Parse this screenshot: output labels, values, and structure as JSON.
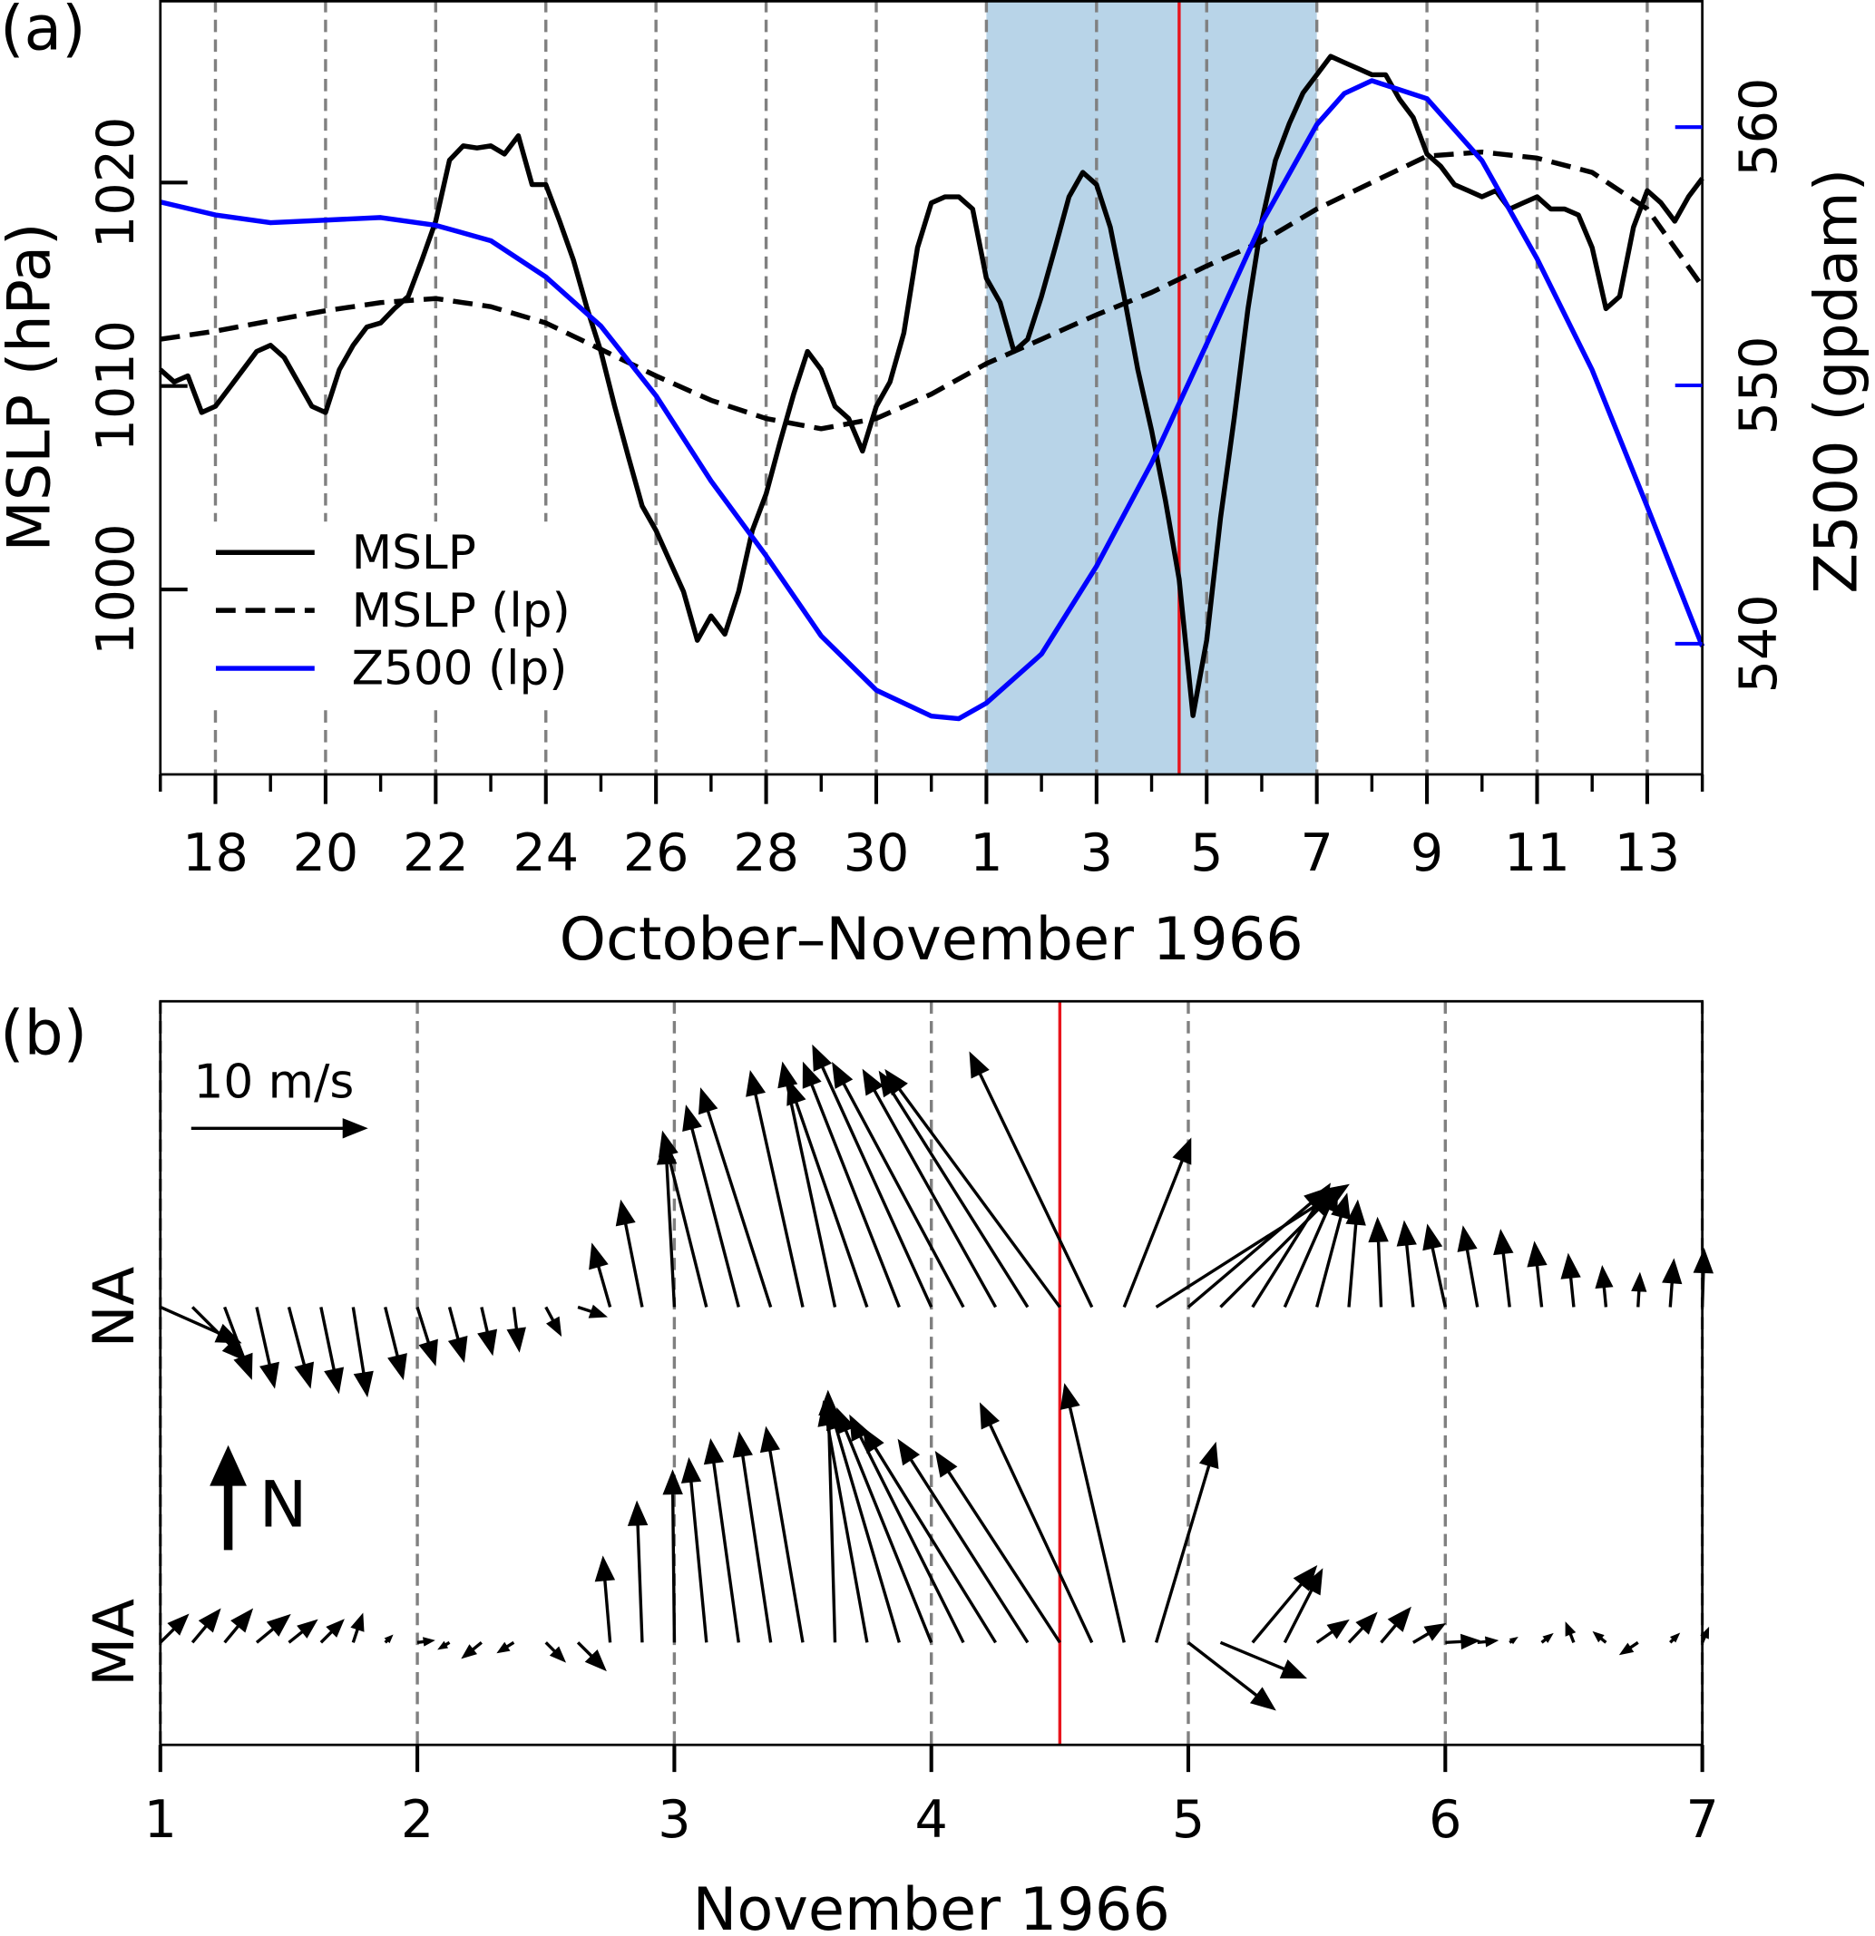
{
  "chart_data": [
    {
      "type": "line",
      "panel_label": "(a)",
      "xlabel": "October–November 1966",
      "ylabel": "MSLP (hPa)",
      "y2label": "Z500 (gpdam)",
      "xlim": [
        0,
        28
      ],
      "xticks": [
        {
          "value": 1,
          "label": "18"
        },
        {
          "value": 3,
          "label": "20"
        },
        {
          "value": 5,
          "label": "22"
        },
        {
          "value": 7,
          "label": "24"
        },
        {
          "value": 9,
          "label": "26"
        },
        {
          "value": 11,
          "label": "28"
        },
        {
          "value": 13,
          "label": "30"
        },
        {
          "value": 15,
          "label": "1"
        },
        {
          "value": 17,
          "label": "3"
        },
        {
          "value": 19,
          "label": "5"
        },
        {
          "value": 21,
          "label": "7"
        },
        {
          "value": 23,
          "label": "9"
        },
        {
          "value": 25,
          "label": "11"
        },
        {
          "value": 27,
          "label": "13"
        }
      ],
      "xminorticks": [
        0,
        1,
        2,
        3,
        4,
        5,
        6,
        7,
        8,
        9,
        10,
        11,
        12,
        13,
        14,
        15,
        16,
        17,
        18,
        19,
        20,
        21,
        22,
        23,
        24,
        25,
        26,
        27,
        28
      ],
      "ylim": [
        990.91,
        1028.97
      ],
      "yticks": [
        1000,
        1010,
        1020
      ],
      "y2lim": [
        534.94,
        564.92
      ],
      "y2ticks": [
        540,
        550,
        560
      ],
      "grid": true,
      "span": [
        15,
        21
      ],
      "span_color": "#b8d4e8",
      "vline": 18.5,
      "vline_color": "#e8141c",
      "legend": "lower left",
      "series": [
        {
          "name": "MSLP",
          "color": "#000000",
          "linestyle": "solid",
          "x": [
            0,
            0.25,
            0.5,
            0.75,
            1,
            1.25,
            1.5,
            1.75,
            2,
            2.25,
            2.5,
            2.75,
            3,
            3.25,
            3.5,
            3.75,
            4,
            4.25,
            4.5,
            4.75,
            5,
            5.25,
            5.5,
            5.75,
            6,
            6.25,
            6.5,
            6.75,
            7,
            7.25,
            7.5,
            7.75,
            8,
            8.25,
            8.5,
            8.75,
            9,
            9.25,
            9.5,
            9.75,
            10,
            10.25,
            10.5,
            10.75,
            11,
            11.25,
            11.5,
            11.75,
            12,
            12.25,
            12.5,
            12.75,
            13,
            13.25,
            13.5,
            13.75,
            14,
            14.25,
            14.5,
            14.75,
            15,
            15.25,
            15.5,
            15.75,
            16,
            16.25,
            16.5,
            16.75,
            17,
            17.25,
            17.5,
            17.75,
            18,
            18.25,
            18.5,
            18.75,
            19,
            19.25,
            19.5,
            19.75,
            20,
            20.25,
            20.5,
            20.75,
            21,
            21.25,
            21.5,
            21.75,
            22,
            22.25,
            22.5,
            22.75,
            23,
            23.25,
            23.5,
            23.75,
            24,
            24.25,
            24.5,
            24.75,
            25,
            25.25,
            25.5,
            25.75,
            26,
            26.25,
            26.5,
            26.75,
            27,
            27.25,
            27.5,
            27.75,
            28
          ],
          "values": [
            1010.8,
            1010.2,
            1010.5,
            1008.7,
            1009.0,
            1009.9,
            1010.8,
            1011.7,
            1012.0,
            1011.4,
            1010.2,
            1009.0,
            1008.7,
            1010.8,
            1012.0,
            1012.9,
            1013.1,
            1013.8,
            1014.4,
            1016.2,
            1018.1,
            1021.1,
            1021.8,
            1021.7,
            1021.8,
            1021.4,
            1022.3,
            1019.9,
            1019.9,
            1018.1,
            1016.2,
            1013.8,
            1011.7,
            1009.0,
            1006.5,
            1004.1,
            1002.9,
            1001.4,
            999.9,
            997.5,
            998.7,
            997.8,
            999.9,
            1002.9,
            1004.7,
            1007.2,
            1009.6,
            1011.7,
            1010.8,
            1009.0,
            1008.4,
            1006.8,
            1009.0,
            1010.2,
            1012.6,
            1016.8,
            1019.0,
            1019.3,
            1019.3,
            1018.7,
            1015.3,
            1014.1,
            1011.7,
            1012.3,
            1014.4,
            1016.8,
            1019.3,
            1020.5,
            1019.9,
            1017.8,
            1014.4,
            1010.8,
            1007.8,
            1004.4,
            1000.5,
            993.8,
            997.5,
            1003.5,
            1008.4,
            1013.8,
            1018.1,
            1021.1,
            1022.9,
            1024.4,
            1025.3,
            1026.2,
            1025.9,
            1025.6,
            1025.3,
            1025.3,
            1024.1,
            1023.2,
            1021.4,
            1020.8,
            1019.9,
            1019.6,
            1019.3,
            1019.6,
            1018.7,
            1019.0,
            1019.3,
            1018.7,
            1018.7,
            1018.4,
            1016.8,
            1013.8,
            1014.4,
            1017.8,
            1019.6,
            1019.0,
            1018.1,
            1019.3,
            1020.2
          ]
        },
        {
          "name": "MSLP (lp)",
          "color": "#000000",
          "linestyle": "dashed",
          "x": [
            0,
            1,
            2,
            3,
            4,
            5,
            6,
            7,
            8,
            9,
            10,
            11,
            12,
            13,
            14,
            15,
            16,
            17,
            18,
            19,
            20,
            21,
            22,
            23,
            24,
            25,
            26,
            27,
            28
          ],
          "values": [
            1012.3,
            1012.7,
            1013.2,
            1013.7,
            1014.1,
            1014.3,
            1013.9,
            1013.1,
            1011.8,
            1010.5,
            1009.3,
            1008.4,
            1007.9,
            1008.4,
            1009.6,
            1011.1,
            1012.3,
            1013.5,
            1014.6,
            1015.9,
            1017.1,
            1018.7,
            1020.0,
            1021.3,
            1021.5,
            1021.2,
            1020.5,
            1018.7,
            1014.9
          ]
        },
        {
          "name": "Z500 (lp)",
          "color": "#0000ff",
          "linestyle": "solid",
          "axis": "y2",
          "x": [
            0,
            1,
            2,
            3,
            4,
            5,
            6,
            7,
            8,
            9,
            10,
            11,
            12,
            13,
            14,
            14.5,
            15,
            16,
            17,
            18,
            19,
            20,
            21,
            21.5,
            22,
            23,
            24,
            25,
            26,
            27,
            28
          ],
          "values": [
            557.1,
            556.6,
            556.3,
            556.4,
            556.5,
            556.2,
            555.6,
            554.2,
            552.3,
            549.6,
            546.3,
            543.4,
            540.3,
            538.2,
            537.2,
            537.1,
            537.7,
            539.6,
            543.0,
            547.0,
            551.6,
            556.3,
            560.1,
            561.3,
            561.8,
            561.1,
            558.7,
            554.9,
            550.6,
            545.3,
            539.9
          ]
        }
      ]
    },
    {
      "type": "quiver",
      "panel_label": "(b)",
      "xlabel": "November 1966",
      "xlim": [
        1,
        7
      ],
      "xticks": [
        1,
        2,
        3,
        4,
        5,
        6,
        7
      ],
      "grid": true,
      "vline": 4.5,
      "vline_color": "#e8141c",
      "categories": [
        "NA",
        "MA"
      ],
      "key": {
        "value": 10,
        "label": "10 m/s"
      },
      "north_label": "N",
      "x": [
        1,
        1.125,
        1.25,
        1.375,
        1.5,
        1.625,
        1.75,
        1.875,
        2,
        2.125,
        2.25,
        2.375,
        2.5,
        2.625,
        2.75,
        2.875,
        3,
        3.125,
        3.25,
        3.375,
        3.5,
        3.625,
        3.75,
        3.875,
        4,
        4.125,
        4.25,
        4.375,
        4.5,
        4.625,
        4.75,
        4.875,
        5,
        5.125,
        5.25,
        5.375,
        5.5,
        5.625,
        5.75,
        5.875,
        6,
        6.125,
        6.25,
        6.375,
        6.5,
        6.625,
        6.75,
        6.875,
        7
      ],
      "series": [
        {
          "u": [
            4.5,
            3.0,
            1.5,
            1.0,
            1.2,
            1.0,
            0.8,
            1.0,
            1.0,
            0.8,
            0.6,
            0.3,
            0.8,
            1.5,
            -1.0,
            -1.2,
            -0.5,
            -2.5,
            -3.0,
            -4.0,
            -3.0,
            -3.0,
            -4.5,
            -5.5,
            -6.8,
            -7.5,
            -7.6,
            -8.5,
            -10.0,
            -7.0,
            3.8,
            11.0,
            8.0,
            6.5,
            4.4,
            3.0,
            1.7,
            0.5,
            -0.2,
            -0.5,
            -1.0,
            -0.8,
            -0.5,
            -0.4,
            -0.3,
            -0.2,
            0.1,
            0.2,
            0.1
          ],
          "v": [
            -2.0,
            -3.0,
            -4.0,
            -4.5,
            -4.5,
            -4.8,
            -5.0,
            -4.0,
            -3.2,
            -3.0,
            -2.6,
            -2.4,
            -1.5,
            -0.5,
            3.5,
            6.0,
            9.5,
            10.0,
            11.5,
            12.5,
            13.5,
            14.0,
            13.0,
            14.0,
            15.0,
            14.0,
            13.6,
            13.5,
            13.6,
            14.6,
            9.6,
            7.0,
            6.8,
            6.5,
            7.0,
            6.8,
            6.4,
            6.0,
            5.0,
            4.8,
            4.6,
            4.5,
            4.3,
            3.6,
            2.9,
            2.2,
            1.8,
            2.6,
            3.2
          ]
        },
        {
          "u": [
            1.5,
            1.5,
            1.5,
            1.8,
            1.5,
            1.2,
            0.5,
            0.3,
            0.8,
            -0.5,
            -1.0,
            -0.8,
            1.0,
            1.5,
            -0.4,
            -0.3,
            -0.1,
            -1.0,
            -1.6,
            -1.8,
            -2.1,
            -0.4,
            -2.5,
            -4.0,
            -5.4,
            -6.5,
            -7.6,
            -7.4,
            -7.1,
            -6.4,
            -3.4,
            3.4,
            4.9,
            4.8,
            3.6,
            2.1,
            1.7,
            1.5,
            1.6,
            1.7,
            1.8,
            1.0,
            0.3,
            0.5,
            -0.4,
            -0.6,
            -0.9,
            0.4,
            0.3
          ],
          "v": [
            1.5,
            1.8,
            1.8,
            1.5,
            1.2,
            1.2,
            1.5,
            0.3,
            0.1,
            -0.3,
            -0.8,
            -0.5,
            -1.0,
            -1.5,
            4.8,
            8.0,
            9.8,
            10.5,
            11.6,
            12.0,
            12.3,
            14.4,
            13.8,
            13.6,
            13.4,
            13.0,
            12.3,
            11.6,
            10.9,
            13.7,
            14.8,
            11.4,
            -3.8,
            -2.0,
            4.3,
            4.1,
            1.2,
            1.6,
            1.9,
            1.0,
            0.1,
            0.1,
            0.2,
            0.4,
            1.0,
            0.5,
            -0.6,
            0.4,
            0.7
          ]
        }
      ]
    }
  ]
}
